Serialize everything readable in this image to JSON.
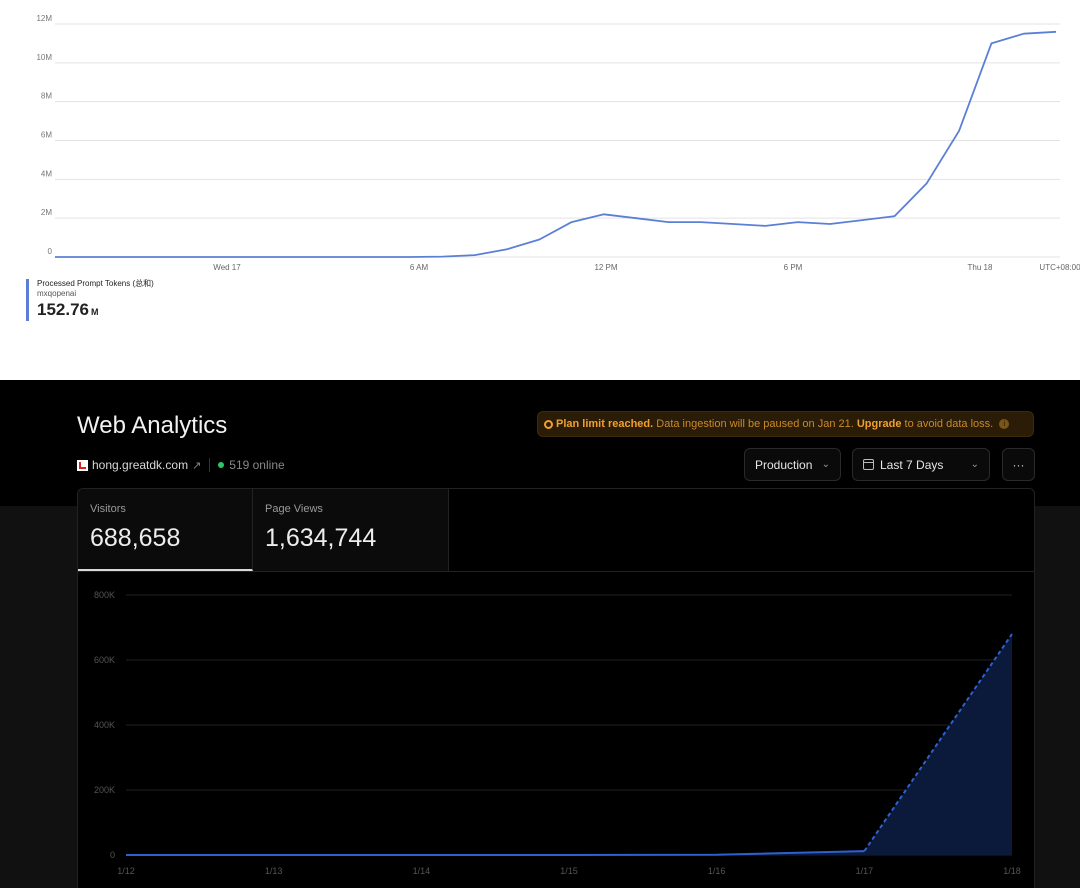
{
  "token_chart": {
    "y_ticks": [
      "0",
      "2M",
      "4M",
      "6M",
      "8M",
      "10M",
      "12M"
    ],
    "x_ticks": [
      "Wed 17",
      "6 AM",
      "12 PM",
      "6 PM",
      "Thu 18",
      "UTC+08:00"
    ],
    "legend": {
      "name": "Processed Prompt Tokens (总和)",
      "sub": "mxqopenai",
      "value": "152.76",
      "unit": "M"
    },
    "line_color": "#5b7fd6"
  },
  "header": {
    "title": "Web Analytics",
    "banner": {
      "strong": "Plan limit reached.",
      "text": " Data ingestion will be paused on Jan 21. ",
      "link": "Upgrade",
      "tail": " to avoid data loss."
    },
    "site": "hong.greatdk.com",
    "online": "519 online",
    "environment": "Production",
    "range": "Last 7 Days",
    "more": "···"
  },
  "metrics": [
    {
      "label": "Visitors",
      "value": "688,658"
    },
    {
      "label": "Page Views",
      "value": "1,634,744"
    }
  ],
  "chart_data": [
    {
      "type": "line",
      "title": "",
      "xlabel": "",
      "ylabel": "",
      "ylim": [
        0,
        12000000
      ],
      "x": [
        0,
        1,
        2,
        3,
        4,
        5,
        6,
        7,
        8,
        9,
        10,
        11,
        12,
        13,
        14,
        15,
        16,
        17,
        18,
        19,
        20,
        21,
        22,
        23,
        24,
        25,
        26,
        27,
        28,
        29,
        30,
        31
      ],
      "series": [
        {
          "name": "Processed Prompt Tokens (总和)",
          "values": [
            0,
            0,
            0,
            0,
            0,
            0,
            0,
            0,
            0,
            0,
            0,
            0,
            20000,
            100000,
            400000,
            900000,
            1800000,
            2200000,
            2000000,
            1800000,
            1800000,
            1700000,
            1600000,
            1800000,
            1700000,
            1900000,
            2100000,
            3800000,
            6500000,
            11000000,
            11500000,
            11600000
          ]
        }
      ],
      "x_ticks": [
        "Wed 17",
        "6 AM",
        "12 PM",
        "6 PM",
        "Thu 18"
      ],
      "y_ticks": [
        "0",
        "2M",
        "4M",
        "6M",
        "8M",
        "10M",
        "12M"
      ],
      "grid": true
    },
    {
      "type": "area",
      "title": "",
      "xlabel": "",
      "ylabel": "",
      "categories": [
        "1/12",
        "1/13",
        "1/14",
        "1/15",
        "1/16",
        "1/17",
        "1/18"
      ],
      "series": [
        {
          "values": [
            0,
            0,
            0,
            0,
            1000,
            12000,
            680000
          ]
        }
      ],
      "ylim": [
        0,
        800000
      ],
      "y_ticks": [
        "0",
        "200K",
        "400K",
        "600K",
        "800K"
      ],
      "grid": true
    }
  ]
}
